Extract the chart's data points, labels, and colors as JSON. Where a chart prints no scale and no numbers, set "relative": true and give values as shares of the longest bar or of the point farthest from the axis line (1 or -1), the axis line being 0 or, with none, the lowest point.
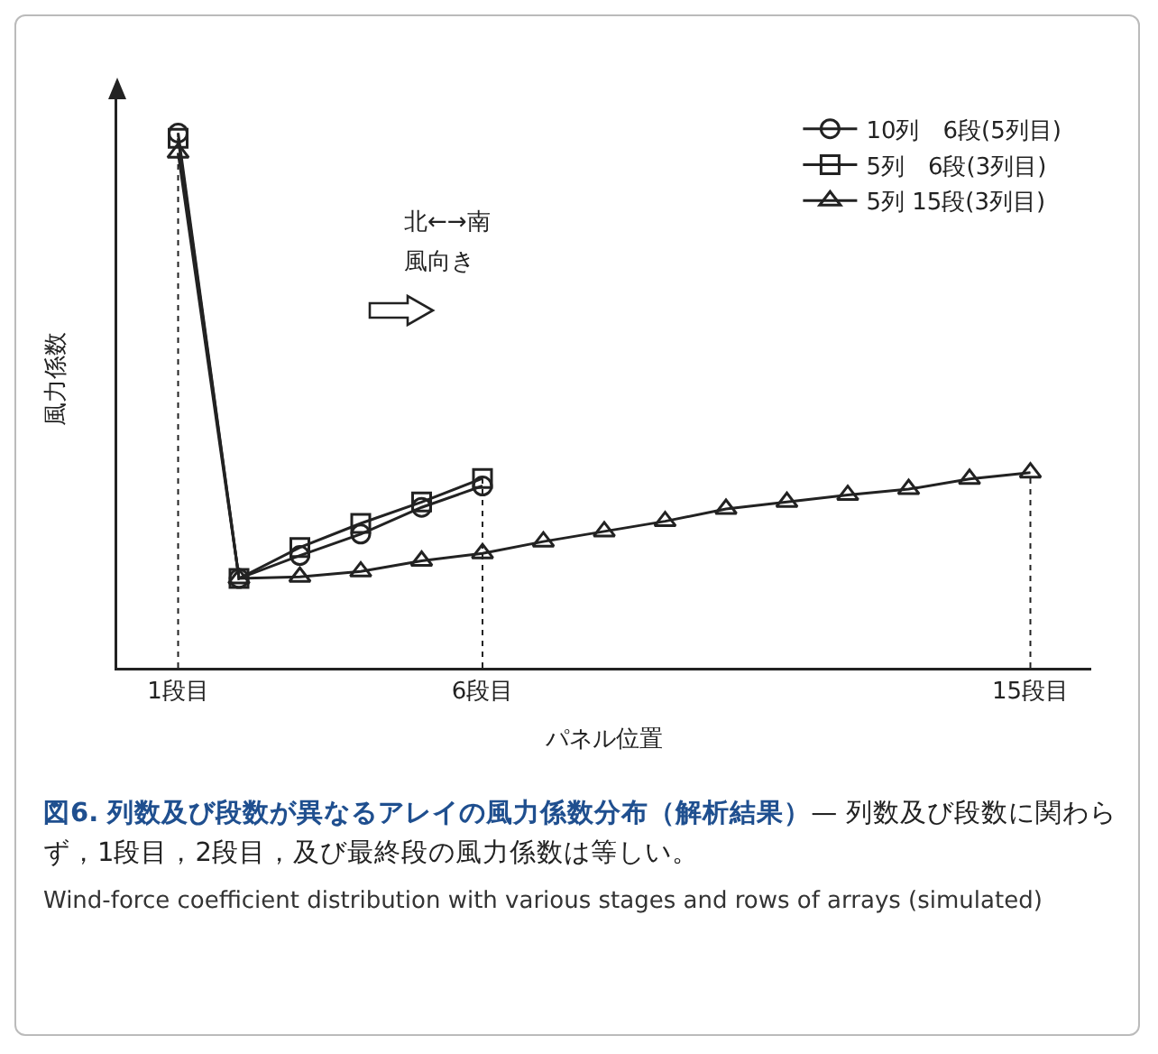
{
  "chart_data": {
    "type": "line",
    "relative": true,
    "title": "図6. 列数及び段数が異なるアレイの風力係数分布（解析結果）",
    "subtitle": "— 列数及び段数に関わらず，1段目，2段目，及び最終段の風力係数は等しい。",
    "xlabel": "パネル位置",
    "ylabel": "風力係数",
    "x": [
      1,
      2,
      3,
      4,
      5,
      6,
      7,
      8,
      9,
      10,
      11,
      12,
      13,
      14,
      15
    ],
    "xlim": [
      0,
      16
    ],
    "xticks": [
      {
        "value": 1,
        "label": "1段目"
      },
      {
        "value": 6,
        "label": "6段目"
      },
      {
        "value": 15,
        "label": "15段目"
      }
    ],
    "series": [
      {
        "name": "10列　6段(5列目)",
        "color": "#222222",
        "marker": "circle",
        "x": [
          1,
          2,
          3,
          4,
          5,
          6
        ],
        "values": [
          1,
          0.167,
          0.21,
          0.25,
          0.3,
          0.34
        ]
      },
      {
        "name": "5列　6段(3列目)",
        "color": "#222222",
        "marker": "square",
        "x": [
          1,
          2,
          3,
          4,
          5,
          6
        ],
        "values": [
          0.99,
          0.167,
          0.225,
          0.27,
          0.31,
          0.354
        ]
      },
      {
        "name": "5列 15段(3列目)",
        "color": "#222222",
        "marker": "triangle",
        "values": [
          0.963,
          0.167,
          0.17,
          0.18,
          0.2,
          0.214,
          0.236,
          0.255,
          0.274,
          0.297,
          0.31,
          0.323,
          0.334,
          0.353,
          0.365
        ]
      }
    ],
    "ref_lines": [
      {
        "axis": "x",
        "value": 1,
        "line_style": "dotted"
      },
      {
        "axis": "x",
        "value": 6,
        "line_style": "dotted"
      },
      {
        "axis": "x",
        "value": 15,
        "line_style": "dotted"
      }
    ],
    "annotations": [
      "北←→南",
      "風向き",
      "Wind-force coefficient distribution with various stages and rows of arrays (simulated)"
    ],
    "legend": "top right",
    "grid": false
  }
}
